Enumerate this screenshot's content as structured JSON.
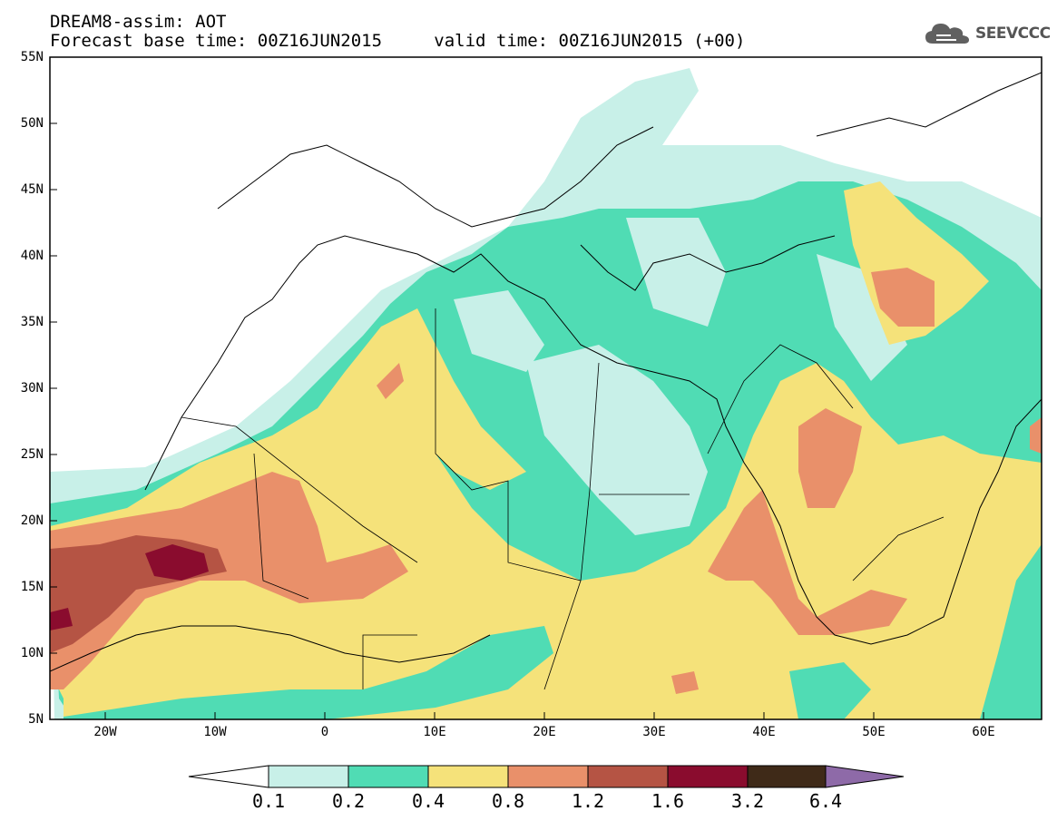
{
  "header": {
    "title": "DREAM8-assim: AOT",
    "base_time": "Forecast base time: 00Z16JUN2015",
    "valid_time": "valid time: 00Z16JUN2015 (+00)",
    "logo_text": "SEEVCCC",
    "logo_icon": "cloud-logo-icon"
  },
  "map": {
    "lat_labels": [
      "55N",
      "50N",
      "45N",
      "40N",
      "35N",
      "30N",
      "25N",
      "20N",
      "15N",
      "10N",
      "5N"
    ],
    "lon_labels": [
      "20W",
      "10W",
      "0",
      "10E",
      "20E",
      "30E",
      "40E",
      "50E",
      "60E"
    ]
  },
  "colorbar": {
    "levels": [
      "0.1",
      "0.2",
      "0.4",
      "0.8",
      "1.2",
      "1.6",
      "3.2",
      "6.4"
    ],
    "colors": [
      "#c8f0e8",
      "#50dcb4",
      "#f5e27a",
      "#e9906a",
      "#b55444",
      "#8a0c2e",
      "#3f2a18",
      "#8e6aa8"
    ]
  }
}
